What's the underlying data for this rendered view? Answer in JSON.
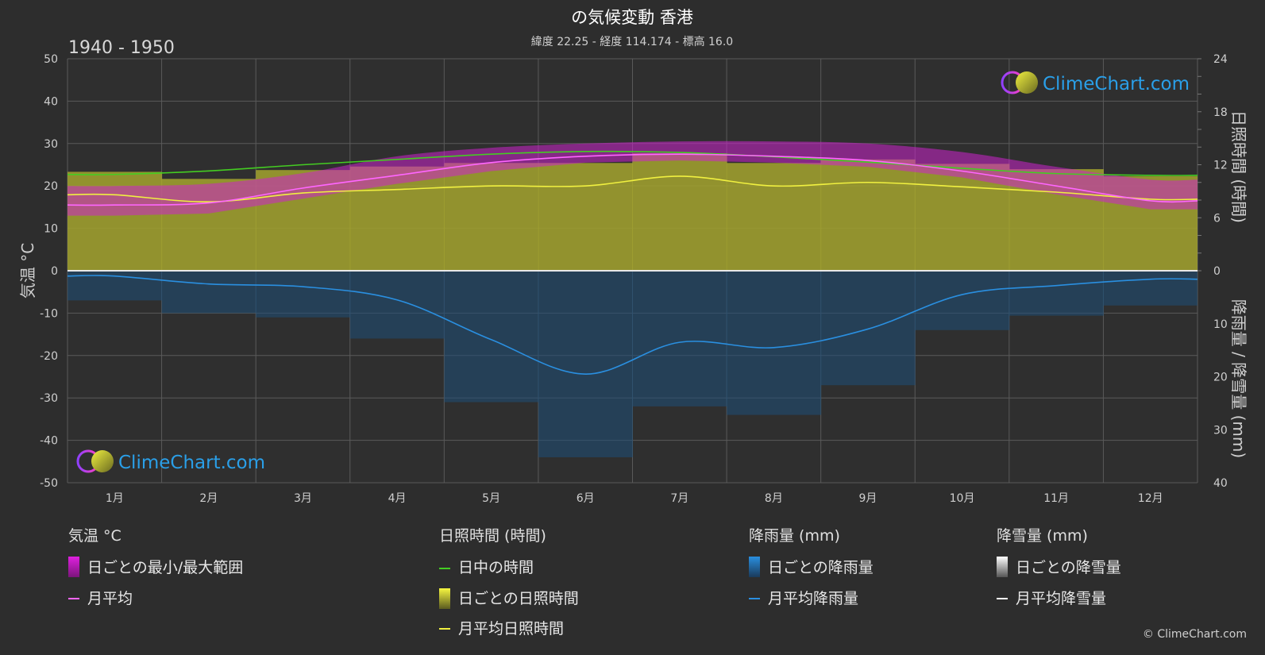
{
  "title": "の気候変動 香港",
  "subtitle": "緯度 22.25 - 経度 114.174 - 標高 16.0",
  "period": "1940 - 1950",
  "copyright": "© ClimeChart.com",
  "watermark": "ClimeChart.com",
  "axes": {
    "left_title": "気温 °C",
    "right_top_title": "日照時間 (時間)",
    "right_bottom_title": "降雨量 / 降雪量 (mm)"
  },
  "legend": {
    "temp": {
      "header": "気温 °C",
      "range_label": "日ごとの最小/最大範囲",
      "avg_label": "月平均"
    },
    "sun": {
      "header": "日照時間 (時間)",
      "daylight_label": "日中の時間",
      "daily_label": "日ごとの日照時間",
      "avg_label": "月平均日照時間"
    },
    "rain": {
      "header": "降雨量 (mm)",
      "daily_label": "日ごとの降雨量",
      "avg_label": "月平均降雨量"
    },
    "snow": {
      "header": "降雪量 (mm)",
      "daily_label": "日ごとの降雪量",
      "avg_label": "月平均降雪量"
    }
  },
  "colors": {
    "daylight": "#44cc22",
    "sunshine_avg": "#f0f040",
    "sunshine_fill": "#a3a32e",
    "temp_avg": "#ff66ff",
    "temp_range": "#cc22cc",
    "rain": "#2a8fe0",
    "snow": "#ffffff"
  },
  "chart_data": {
    "type": "area",
    "categories": [
      "1月",
      "2月",
      "3月",
      "4月",
      "5月",
      "6月",
      "7月",
      "8月",
      "9月",
      "10月",
      "11月",
      "12月"
    ],
    "temp_axis": {
      "ylim": [
        -50,
        50
      ],
      "ticks": [
        50,
        40,
        30,
        20,
        10,
        0,
        -10,
        -20,
        -30,
        -40,
        -50
      ]
    },
    "sun_axis": {
      "ylim": [
        0,
        24
      ],
      "ticks": [
        24,
        18,
        12,
        6,
        0
      ]
    },
    "precip_axis": {
      "ylim": [
        0,
        40
      ],
      "ticks": [
        0,
        10,
        20,
        30,
        40
      ]
    },
    "series": [
      {
        "name": "日中の時間",
        "unit": "h",
        "values": [
          10.9,
          11.3,
          12.0,
          12.6,
          13.2,
          13.5,
          13.4,
          12.9,
          12.3,
          11.6,
          11.0,
          10.8
        ]
      },
      {
        "name": "月平均日照時間",
        "unit": "h",
        "values": [
          8.6,
          7.8,
          8.8,
          9.2,
          9.6,
          9.6,
          10.7,
          9.6,
          10.0,
          9.5,
          8.9,
          8.1
        ]
      },
      {
        "name": "月平均",
        "unit": "°C",
        "values": [
          15.5,
          16.0,
          19.5,
          22.5,
          25.5,
          27.0,
          27.5,
          27.0,
          26.0,
          23.5,
          20.0,
          16.5
        ]
      },
      {
        "name": "日ごとの最小/最大範囲",
        "unit": "°C",
        "low": [
          13.0,
          13.5,
          17.0,
          20.5,
          23.5,
          25.5,
          26.0,
          25.5,
          24.5,
          22.0,
          18.0,
          14.5
        ],
        "high": [
          20.0,
          20.5,
          23.0,
          27.0,
          29.0,
          30.0,
          30.5,
          30.5,
          30.0,
          28.0,
          24.5,
          21.5
        ]
      },
      {
        "name": "月平均降雨量",
        "unit": "mm",
        "values": [
          1.0,
          2.5,
          3.0,
          5.5,
          13.0,
          19.5,
          13.5,
          14.5,
          11.0,
          4.5,
          2.8,
          1.6
        ]
      },
      {
        "name": "月平均降雪量",
        "unit": "mm",
        "values": [
          0,
          0,
          0,
          0,
          0,
          0,
          0,
          0,
          0,
          0,
          0,
          0
        ]
      }
    ]
  }
}
